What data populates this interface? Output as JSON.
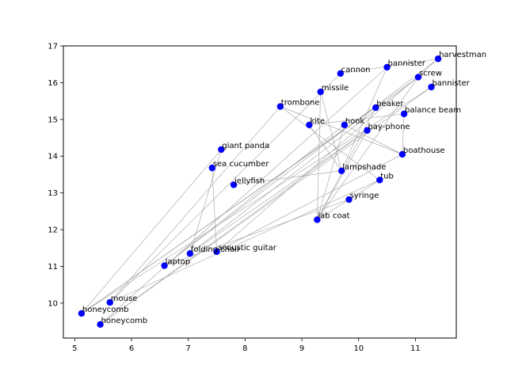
{
  "chart_data": {
    "type": "scatter",
    "title": "",
    "xlabel": "",
    "ylabel": "",
    "xlim": [
      4.8,
      11.72
    ],
    "ylim": [
      9.05,
      17.0
    ],
    "xticks": [
      5,
      6,
      7,
      8,
      9,
      10,
      11
    ],
    "yticks": [
      10,
      11,
      12,
      13,
      14,
      15,
      16,
      17
    ],
    "grid": false,
    "point_color": "#0000ff",
    "edge_color": "#a0a0a0",
    "points": [
      {
        "label": "harvestman",
        "x": 11.4,
        "y": 16.65
      },
      {
        "label": "bannister",
        "x": 10.5,
        "y": 16.42
      },
      {
        "label": "cannon",
        "x": 9.68,
        "y": 16.25
      },
      {
        "label": "screw",
        "x": 11.05,
        "y": 16.15
      },
      {
        "label": "bannister",
        "x": 11.28,
        "y": 15.88
      },
      {
        "label": "missile",
        "x": 9.33,
        "y": 15.75
      },
      {
        "label": "trombone",
        "x": 8.62,
        "y": 15.35
      },
      {
        "label": "beaker",
        "x": 10.3,
        "y": 15.32
      },
      {
        "label": "balance beam",
        "x": 10.8,
        "y": 15.15
      },
      {
        "label": "kite",
        "x": 9.13,
        "y": 14.85
      },
      {
        "label": "hook",
        "x": 9.75,
        "y": 14.85
      },
      {
        "label": "bay-phone",
        "x": 10.15,
        "y": 14.7
      },
      {
        "label": "giant panda",
        "x": 7.58,
        "y": 14.18
      },
      {
        "label": "boathouse",
        "x": 10.77,
        "y": 14.05
      },
      {
        "label": "sea cucumber",
        "x": 7.42,
        "y": 13.68
      },
      {
        "label": "lampshade",
        "x": 9.7,
        "y": 13.6
      },
      {
        "label": "tub",
        "x": 10.37,
        "y": 13.35
      },
      {
        "label": "jellyfish",
        "x": 7.8,
        "y": 13.22
      },
      {
        "label": "syringe",
        "x": 9.83,
        "y": 12.82
      },
      {
        "label": "lab coat",
        "x": 9.27,
        "y": 12.27
      },
      {
        "label": "acoustic guitar",
        "x": 7.5,
        "y": 11.4
      },
      {
        "label": "folding chair",
        "x": 7.03,
        "y": 11.35
      },
      {
        "label": "laptop",
        "x": 6.58,
        "y": 11.02
      },
      {
        "label": "mouse",
        "x": 5.62,
        "y": 10.02
      },
      {
        "label": "honeycomb",
        "x": 5.12,
        "y": 9.72
      },
      {
        "label": "honeycomb",
        "x": 5.45,
        "y": 9.42
      }
    ],
    "edges": [
      [
        24,
        12
      ],
      [
        24,
        3
      ],
      [
        24,
        7
      ],
      [
        24,
        4
      ],
      [
        25,
        11
      ],
      [
        25,
        1
      ],
      [
        25,
        4
      ],
      [
        23,
        2
      ],
      [
        23,
        6
      ],
      [
        23,
        16
      ],
      [
        22,
        10
      ],
      [
        22,
        0
      ],
      [
        22,
        18
      ],
      [
        21,
        12
      ],
      [
        21,
        3
      ],
      [
        21,
        11
      ],
      [
        20,
        14
      ],
      [
        20,
        13
      ],
      [
        20,
        0
      ],
      [
        19,
        11
      ],
      [
        19,
        7
      ],
      [
        19,
        5
      ],
      [
        19,
        16
      ],
      [
        19,
        10
      ],
      [
        19,
        3
      ],
      [
        15,
        17
      ],
      [
        15,
        1
      ],
      [
        15,
        5
      ],
      [
        15,
        9
      ],
      [
        13,
        6
      ],
      [
        13,
        10
      ],
      [
        13,
        8
      ],
      [
        9,
        8
      ],
      [
        2,
        0
      ],
      [
        6,
        16
      ]
    ]
  }
}
